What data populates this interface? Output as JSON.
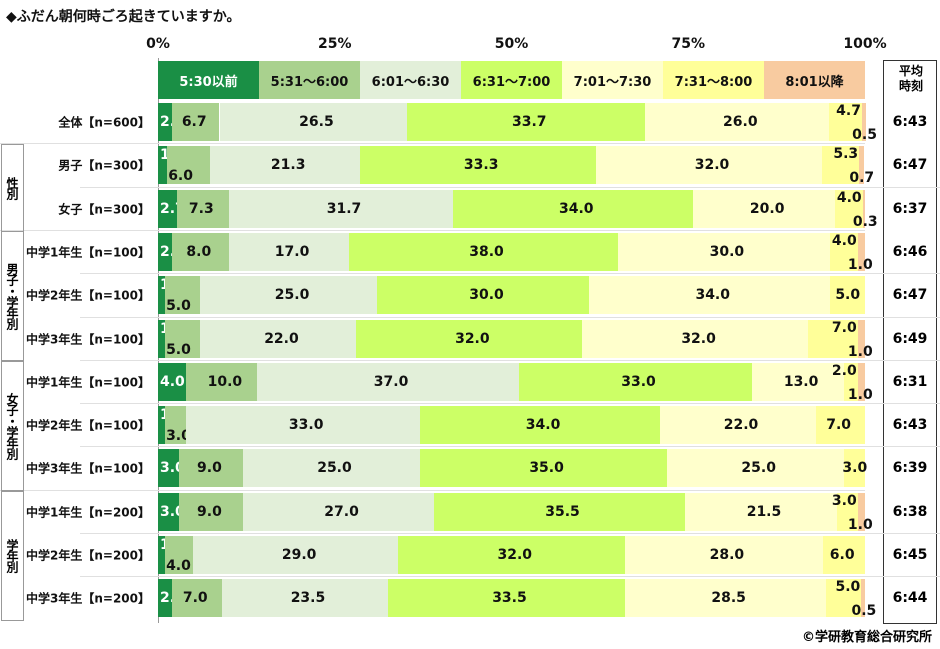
{
  "title": "◆ふだん朝何時ごろ起きていますか。",
  "credit": "©学研教育総合研究所",
  "avg_header": "平均時刻",
  "chart_data": {
    "type": "bar",
    "orientation": "horizontal-stacked-100",
    "x_ticks": [
      "0%",
      "25%",
      "50%",
      "75%",
      "100%"
    ],
    "xlim": [
      0,
      100
    ],
    "legend_placement": "top",
    "series": [
      {
        "name": "5:30以前",
        "color": "#1a8f45",
        "text_color": "#ffffff"
      },
      {
        "name": "5:31～6:00",
        "color": "#a9d18e",
        "text_color": "#111111"
      },
      {
        "name": "6:01～6:30",
        "color": "#e2efd9",
        "text_color": "#111111"
      },
      {
        "name": "6:31～7:00",
        "color": "#ccff66",
        "text_color": "#111111"
      },
      {
        "name": "7:01～7:30",
        "color": "#ffffcc",
        "text_color": "#111111"
      },
      {
        "name": "7:31～8:00",
        "color": "#ffff99",
        "text_color": "#111111"
      },
      {
        "name": "8:01以降",
        "color": "#f8cba0",
        "text_color": "#111111"
      }
    ],
    "groups": [
      {
        "label": ""
      },
      {
        "label": "性別"
      },
      {
        "label": "男子・学年別"
      },
      {
        "label": "女子・学年別"
      },
      {
        "label": "学年別"
      }
    ],
    "rows": [
      {
        "label": "全体【n=600】",
        "group": 0,
        "values": [
          2.0,
          6.7,
          26.5,
          33.7,
          26.0,
          4.7,
          0.5
        ],
        "avg": "6:43"
      },
      {
        "label": "男子【n=300】",
        "group": 1,
        "values": [
          1.3,
          6.0,
          21.3,
          33.3,
          32.0,
          5.3,
          0.7
        ],
        "avg": "6:47"
      },
      {
        "label": "女子【n=300】",
        "group": 1,
        "values": [
          2.7,
          7.3,
          31.7,
          34.0,
          20.0,
          4.0,
          0.3
        ],
        "avg": "6:37"
      },
      {
        "label": "中学1年生【n=100】",
        "group": 2,
        "values": [
          2.0,
          8.0,
          17.0,
          38.0,
          30.0,
          4.0,
          1.0
        ],
        "avg": "6:46"
      },
      {
        "label": "中学2年生【n=100】",
        "group": 2,
        "values": [
          1.0,
          5.0,
          25.0,
          30.0,
          34.0,
          5.0,
          null
        ],
        "avg": "6:47"
      },
      {
        "label": "中学3年生【n=100】",
        "group": 2,
        "values": [
          1.0,
          5.0,
          22.0,
          32.0,
          32.0,
          7.0,
          1.0
        ],
        "avg": "6:49"
      },
      {
        "label": "中学1年生【n=100】",
        "group": 3,
        "values": [
          4.0,
          10.0,
          37.0,
          33.0,
          13.0,
          2.0,
          1.0
        ],
        "avg": "6:31"
      },
      {
        "label": "中学2年生【n=100】",
        "group": 3,
        "values": [
          1.0,
          3.0,
          33.0,
          34.0,
          22.0,
          7.0,
          null
        ],
        "avg": "6:43"
      },
      {
        "label": "中学3年生【n=100】",
        "group": 3,
        "values": [
          3.0,
          9.0,
          25.0,
          35.0,
          25.0,
          3.0,
          null
        ],
        "avg": "6:39"
      },
      {
        "label": "中学1年生【n=200】",
        "group": 4,
        "values": [
          3.0,
          9.0,
          27.0,
          35.5,
          21.5,
          3.0,
          1.0
        ],
        "avg": "6:38"
      },
      {
        "label": "中学2年生【n=200】",
        "group": 4,
        "values": [
          1.0,
          4.0,
          29.0,
          32.0,
          28.0,
          6.0,
          null
        ],
        "avg": "6:45"
      },
      {
        "label": "中学3年生【n=200】",
        "group": 4,
        "values": [
          2.0,
          7.0,
          23.5,
          33.5,
          28.5,
          5.0,
          0.5
        ],
        "avg": "6:44"
      }
    ]
  }
}
